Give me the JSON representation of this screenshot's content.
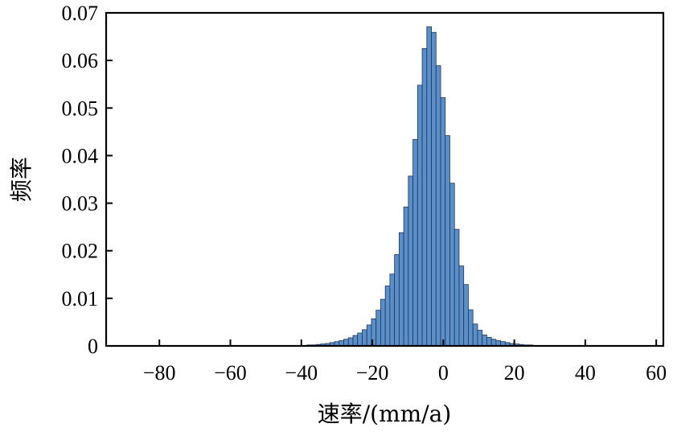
{
  "chart_data": {
    "type": "bar",
    "xlabel": "速率/(mm/a)",
    "ylabel": "频率",
    "xlim": [
      -95,
      62
    ],
    "ylim": [
      0,
      0.07
    ],
    "xticks": [
      -80,
      -60,
      -40,
      -20,
      0,
      20,
      40,
      60
    ],
    "xtick_labels": [
      "−80",
      "−60",
      "−40",
      "−20",
      "0",
      "20",
      "40",
      "60"
    ],
    "yticks": [
      0,
      0.01,
      0.02,
      0.03,
      0.04,
      0.05,
      0.06,
      0.07
    ],
    "ytick_labels": [
      "0",
      "0.01",
      "0.02",
      "0.03",
      "0.04",
      "0.05",
      "0.06",
      "0.07"
    ],
    "grid": false,
    "legend": false,
    "bar_width": 1.3,
    "bar_color": "#5b8fc9",
    "bar_edge_color": "#1d3557",
    "x": [
      -41.7,
      -40.4,
      -39.1,
      -37.8,
      -36.5,
      -35.2,
      -33.9,
      -32.6,
      -31.3,
      -30.0,
      -28.7,
      -27.4,
      -26.1,
      -24.8,
      -23.5,
      -22.2,
      -20.9,
      -19.6,
      -18.3,
      -17.0,
      -15.7,
      -14.4,
      -13.1,
      -11.8,
      -10.5,
      -9.2,
      -7.9,
      -6.6,
      -5.3,
      -4.0,
      -2.7,
      -1.4,
      -0.1,
      1.2,
      2.5,
      3.8,
      5.1,
      6.4,
      7.7,
      9.0,
      10.3,
      11.6,
      12.9,
      14.2,
      15.5,
      16.8,
      18.1,
      19.4,
      20.7,
      22.0,
      23.3,
      24.6,
      25.9,
      27.2,
      28.5,
      29.8,
      31.1,
      32.4
    ],
    "values": [
      0.0001,
      0.0001,
      0.0001,
      0.0002,
      0.0002,
      0.0003,
      0.0004,
      0.0005,
      0.0007,
      0.0009,
      0.0011,
      0.0014,
      0.0017,
      0.0022,
      0.0027,
      0.0034,
      0.0044,
      0.0057,
      0.0075,
      0.0098,
      0.0126,
      0.0151,
      0.0192,
      0.0238,
      0.0292,
      0.0357,
      0.0434,
      0.0548,
      0.0625,
      0.0671,
      0.0659,
      0.0589,
      0.0522,
      0.0442,
      0.0342,
      0.0245,
      0.0168,
      0.0129,
      0.0076,
      0.0046,
      0.0033,
      0.0023,
      0.0018,
      0.0014,
      0.0011,
      0.0009,
      0.0007,
      0.0005,
      0.0004,
      0.0003,
      0.0002,
      0.0002,
      0.0001,
      0.0001,
      0.0001,
      0.0001,
      0.0001,
      0.0001
    ]
  }
}
